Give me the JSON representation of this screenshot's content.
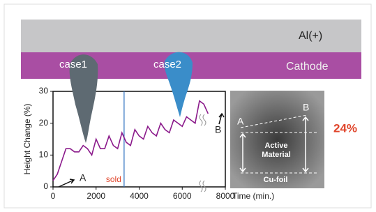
{
  "chart_data": {
    "type": "line",
    "ylabel": "Height Change (%)",
    "xlabel": "Time (min.)",
    "x": [
      0,
      200,
      400,
      600,
      800,
      1000,
      1200,
      1400,
      1600,
      1800,
      2000,
      2200,
      2400,
      2600,
      2800,
      3000,
      3200,
      3400,
      3600,
      3800,
      4000,
      4200,
      4400,
      4600,
      4800,
      5000,
      5200,
      5400,
      5600,
      5800,
      6000,
      6200,
      6400,
      6600,
      6800,
      7000,
      7200
    ],
    "series": [
      {
        "color": "#8b1a8b",
        "values": [
          2,
          4,
          8,
          12,
          12,
          11,
          11,
          13,
          12,
          10,
          15,
          12,
          12,
          16,
          13,
          12,
          17,
          14,
          13,
          18,
          16,
          15,
          19,
          17,
          16,
          20,
          18,
          17,
          21,
          20,
          19,
          22,
          21,
          20,
          27,
          26,
          23
        ]
      }
    ],
    "xlim": [
      0,
      8000
    ],
    "ylim": [
      0,
      30
    ],
    "xticks": [
      0,
      2000,
      4000,
      6000,
      8000
    ],
    "yticks": [
      0,
      10,
      20,
      30
    ],
    "vline": {
      "x": 3300,
      "label": "sold",
      "color": "#2a6fc0"
    },
    "labels": {
      "al": "Al(+)",
      "cathode": "Cathode",
      "case1": "case1",
      "case2": "case2",
      "a": "A",
      "b": "B"
    }
  },
  "panel": {
    "a": "A",
    "b": "B",
    "active": "Active Material",
    "foil": "Cu-foil",
    "percent": "24%"
  }
}
